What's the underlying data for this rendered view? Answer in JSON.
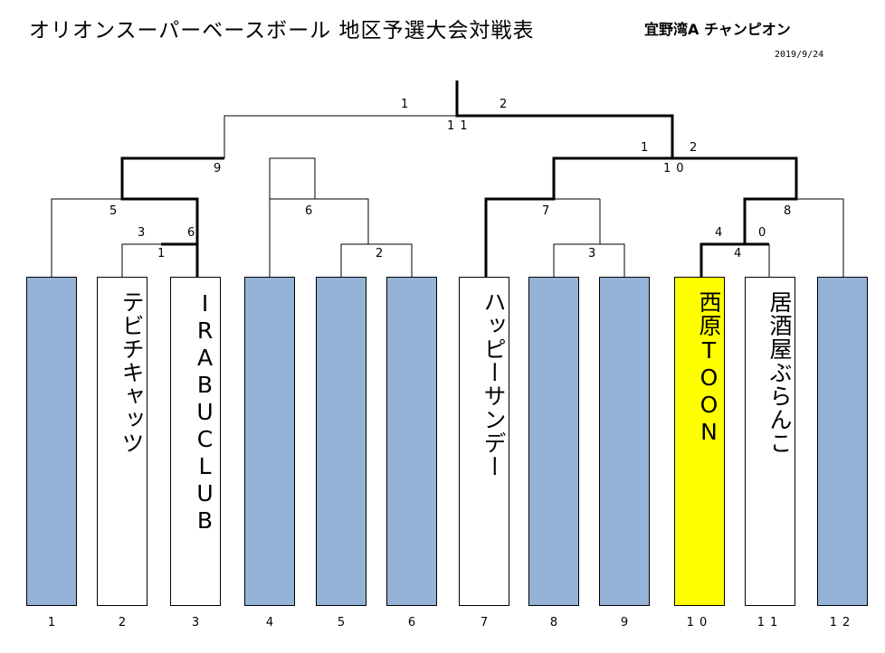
{
  "header": {
    "title": "オリオンスーパーベースボール 地区予選大会対戦表",
    "winner": "宜野湾A チャンピオン",
    "date": "2019/9/24"
  },
  "teams": [
    {
      "no": "1",
      "name": ""
    },
    {
      "no": "2",
      "name": "テビチキャッツ"
    },
    {
      "no": "3",
      "name": "IRABUCLUB"
    },
    {
      "no": "4",
      "name": ""
    },
    {
      "no": "5",
      "name": ""
    },
    {
      "no": "6",
      "name": ""
    },
    {
      "no": "7",
      "name": "ハッピーサンデー"
    },
    {
      "no": "8",
      "name": ""
    },
    {
      "no": "9",
      "name": ""
    },
    {
      "no": "10",
      "name": "西原TOON"
    },
    {
      "no": "11",
      "name": "居酒屋ぶらんこ"
    },
    {
      "no": "12",
      "name": ""
    }
  ],
  "scores": {
    "final_left": "1",
    "final_right": "2",
    "final_no": "11",
    "sf_left_score": "9",
    "sf_right_left": "1",
    "sf_right_right": "2",
    "sf_right_no": "10",
    "m5_left": "5",
    "m6": "6",
    "m3_left": "3",
    "m3_right": "6",
    "m1": "1",
    "m2": "2",
    "m7": "7",
    "m3b": "3",
    "m4_left": "4",
    "m4_right": "0",
    "m4": "4",
    "m8": "8"
  },
  "colors": {
    "empty_slot": "#95b3d7",
    "champion": "#ffff00"
  }
}
